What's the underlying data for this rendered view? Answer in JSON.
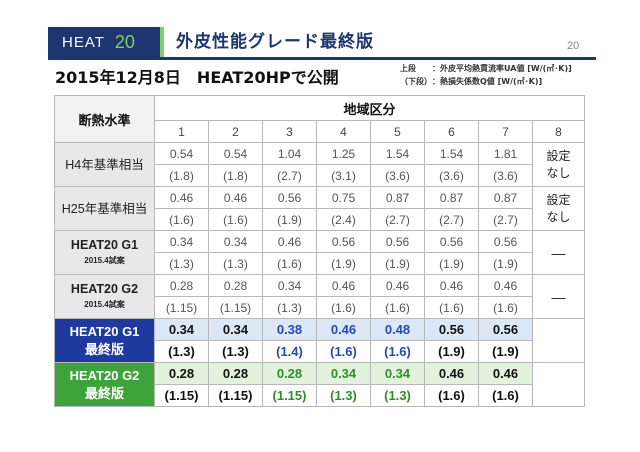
{
  "header": {
    "badge_heat": "HEAT",
    "badge_num": "20",
    "title": "外皮性能グレード最終版",
    "page_number": "20"
  },
  "subtitle": "2015年12月8日　HEAT20HPで公開",
  "legend": {
    "upper_key": "上段",
    "upper_text": "：外皮平均熱貫流率UA値 [W/(㎡･K)]",
    "lower_key": "（下段）",
    "lower_text": "：熱損失係数Q値 [W/(㎡･K)]"
  },
  "table": {
    "label_header": "断熱水準",
    "region_header": "地域区分",
    "regions": [
      "1",
      "2",
      "3",
      "4",
      "5",
      "6",
      "7",
      "8"
    ],
    "rows": [
      {
        "label": "H4年基準相当",
        "sub": "",
        "ua": [
          "0.54",
          "0.54",
          "1.04",
          "1.25",
          "1.54",
          "1.54",
          "1.81"
        ],
        "q": [
          "(1.8)",
          "(1.8)",
          "(2.7)",
          "(3.1)",
          "(3.6)",
          "(3.6)",
          "(3.6)"
        ],
        "r8": "設定なし"
      },
      {
        "label": "H25年基準相当",
        "sub": "",
        "ua": [
          "0.46",
          "0.46",
          "0.56",
          "0.75",
          "0.87",
          "0.87",
          "0.87"
        ],
        "q": [
          "(1.6)",
          "(1.6)",
          "(1.9)",
          "(2.4)",
          "(2.7)",
          "(2.7)",
          "(2.7)"
        ],
        "r8": "設定なし"
      },
      {
        "label": "HEAT20 G1",
        "sub": "2015.4試案",
        "ua": [
          "0.34",
          "0.34",
          "0.46",
          "0.56",
          "0.56",
          "0.56",
          "0.56"
        ],
        "q": [
          "(1.3)",
          "(1.3)",
          "(1.6)",
          "(1.9)",
          "(1.9)",
          "(1.9)",
          "(1.9)"
        ],
        "r8": "―"
      },
      {
        "label": "HEAT20 G2",
        "sub": "2015.4試案",
        "ua": [
          "0.28",
          "0.28",
          "0.34",
          "0.46",
          "0.46",
          "0.46",
          "0.46"
        ],
        "q": [
          "(1.15)",
          "(1.15)",
          "(1.3)",
          "(1.6)",
          "(1.6)",
          "(1.6)",
          "(1.6)"
        ],
        "r8": "―"
      },
      {
        "label": "HEAT20 G1",
        "sub": "最終版",
        "ua": [
          "0.34",
          "0.34",
          "0.38",
          "0.46",
          "0.48",
          "0.56",
          "0.56"
        ],
        "q": [
          "(1.3)",
          "(1.3)",
          "(1.4)",
          "(1.6)",
          "(1.6)",
          "(1.9)",
          "(1.9)"
        ],
        "r8": ""
      },
      {
        "label": "HEAT20 G2",
        "sub": "最終版",
        "ua": [
          "0.28",
          "0.28",
          "0.28",
          "0.34",
          "0.34",
          "0.46",
          "0.46"
        ],
        "q": [
          "(1.15)",
          "(1.15)",
          "(1.15)",
          "(1.3)",
          "(1.3)",
          "(1.6)",
          "(1.6)"
        ],
        "r8": ""
      }
    ]
  },
  "colors": {
    "navy": "#1f3570",
    "g1_blue": "#1f3a9e",
    "g2_green": "#3ea33a",
    "accent_green": "#7fd06a"
  }
}
